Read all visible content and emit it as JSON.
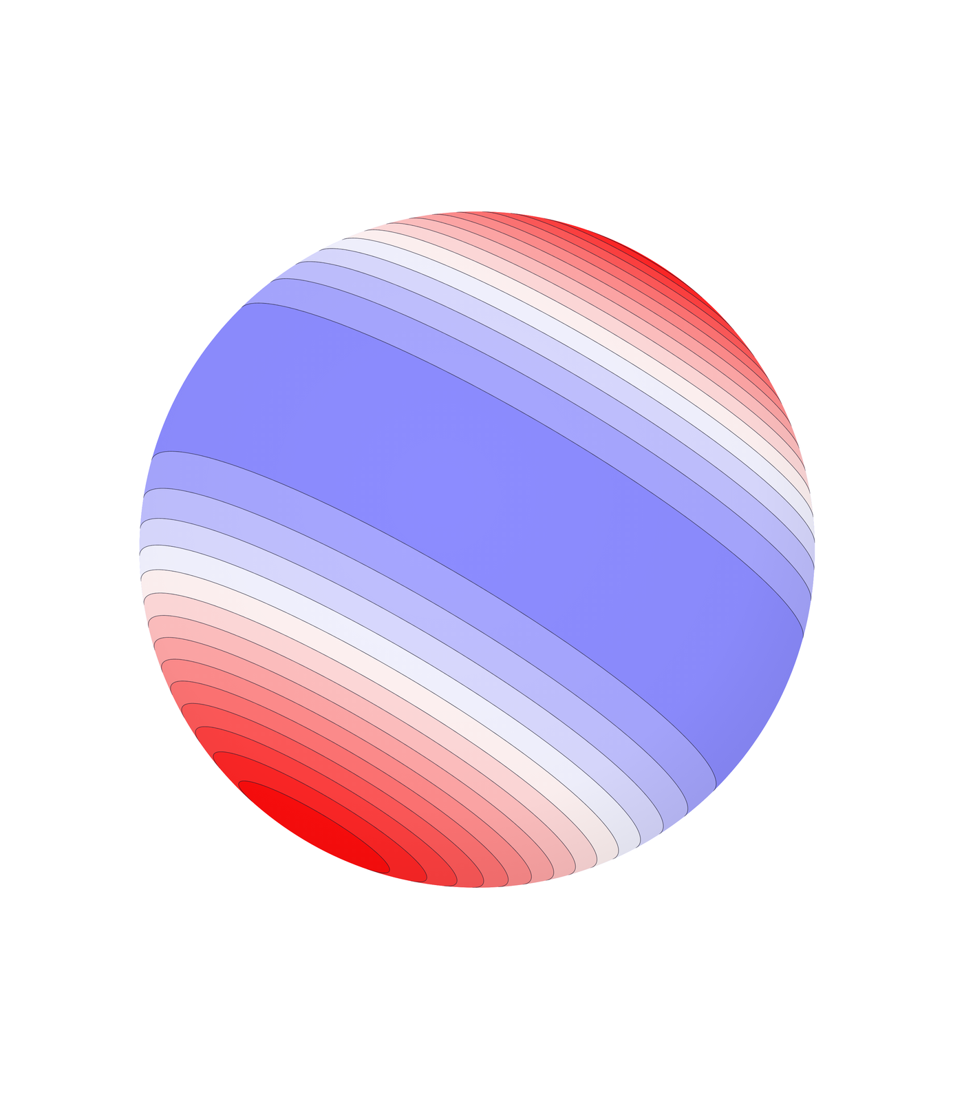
{
  "chart_data": {
    "type": "contour",
    "levels": [
      -1,
      -0.8,
      -0.6,
      -0.4,
      -0.2,
      0,
      0.2,
      0.4,
      0.6,
      0.8,
      1,
      1.2,
      1.4,
      1.6,
      1.8,
      2
    ],
    "colors": [
      "#8c8cff",
      "#a6a6ff",
      "#bfbfff",
      "#d9d9ff",
      "#f2f2ff",
      "#fff2f2",
      "#ffd9d9",
      "#ffbfbf",
      "#ffa6a6",
      "#ff8c8c",
      "#ff7373",
      "#ff5959",
      "#ff4040",
      "#ff2626",
      "#ff0d0d"
    ],
    "tick_labels": false
  }
}
